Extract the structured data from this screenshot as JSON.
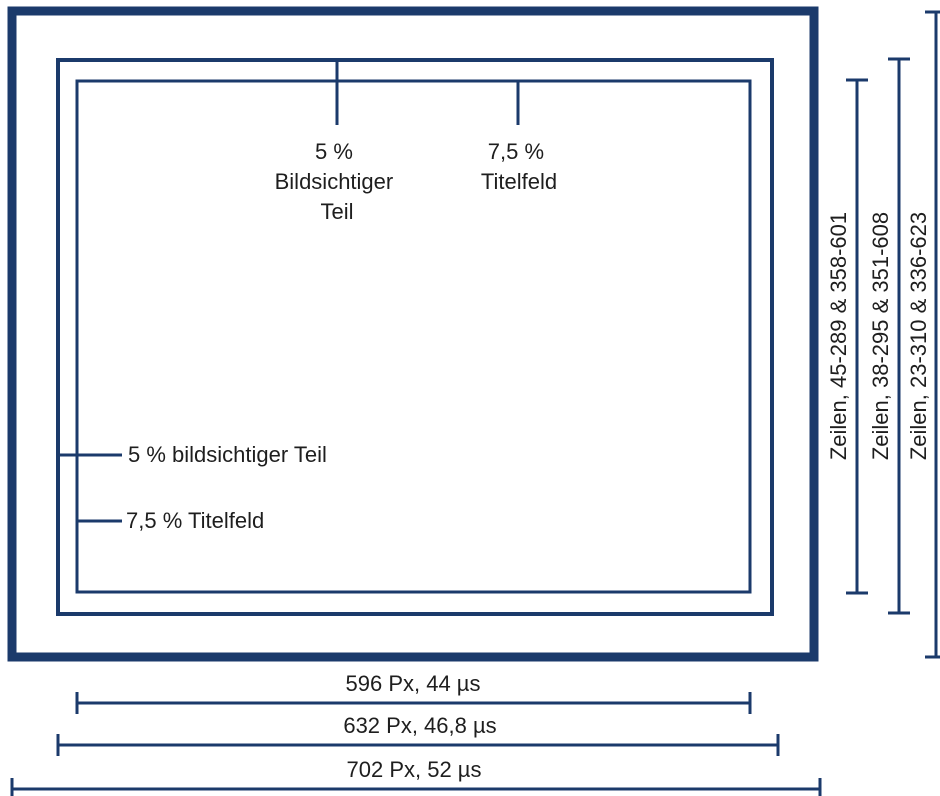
{
  "diagram": {
    "line_color": "#1b3a6b",
    "text_color": "#1e1e1e",
    "top_labels": {
      "action_safe": [
        "5 %",
        "Bildsichtiger",
        "Teil"
      ],
      "title_safe": [
        "7,5 %",
        "Titelfeld"
      ]
    },
    "left_labels": {
      "action_safe": "5 % bildsichtiger Teil",
      "title_safe": "7,5 % Titelfeld"
    },
    "horizontal_dimensions": [
      {
        "label": "596 Px, 44 µs"
      },
      {
        "label": "632 Px, 46,8 µs"
      },
      {
        "label": "702 Px, 52 µs"
      }
    ],
    "vertical_dimensions": [
      {
        "label": "Zeilen, 45-289 & 358-601"
      },
      {
        "label": "Zeilen, 38-295 & 351-608"
      },
      {
        "label": "Zeilen, 23-310 & 336-623"
      }
    ]
  }
}
